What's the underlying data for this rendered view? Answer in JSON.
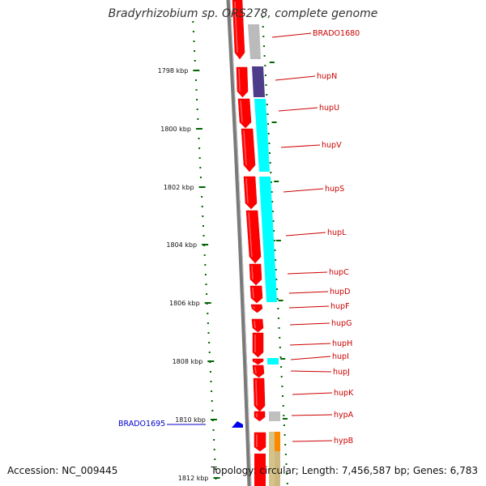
{
  "title": "Bradyrhizobium sp. ORS278, complete genome",
  "accession": "Accession: NC_009445",
  "summary": "Topology: circular; Length: 7,456,587 bp; Genes: 6,783",
  "colors": {
    "backbone": "#7a7a7a",
    "gene_forward": "#ff0000",
    "ruler": "#006600",
    "label_red": "#cc0000",
    "label_blue": "#0000cc",
    "marker_blue": "#0000ee"
  },
  "ticks": [
    {
      "label": "1798 kbp"
    },
    {
      "label": "1800 kbp"
    },
    {
      "label": "1802 kbp"
    },
    {
      "label": "1804 kbp"
    },
    {
      "label": "1806 kbp"
    },
    {
      "label": "1808 kbp"
    },
    {
      "label": "1810 kbp"
    },
    {
      "label": "1812 kbp"
    }
  ],
  "genes": [
    {
      "name": "BRADO1680"
    },
    {
      "name": "hupN"
    },
    {
      "name": "hupU"
    },
    {
      "name": "hupV"
    },
    {
      "name": "hupS"
    },
    {
      "name": "hupL"
    },
    {
      "name": "hupC"
    },
    {
      "name": "hupD"
    },
    {
      "name": "hupF"
    },
    {
      "name": "hupG"
    },
    {
      "name": "hupH"
    },
    {
      "name": "hupI"
    },
    {
      "name": "hupJ"
    },
    {
      "name": "hupK"
    },
    {
      "name": "hypA"
    },
    {
      "name": "hypB"
    }
  ],
  "other_feature": {
    "name": "BRADO1695"
  }
}
